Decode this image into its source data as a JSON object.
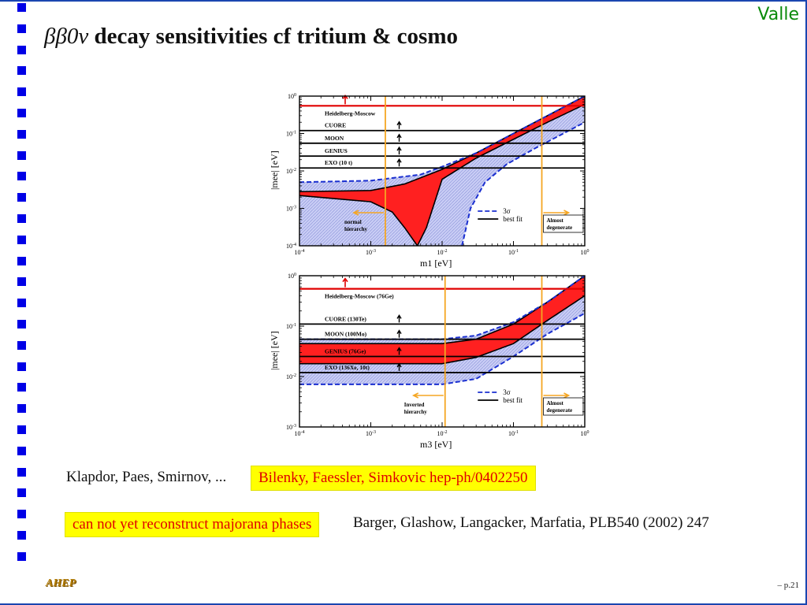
{
  "header": {
    "author": "Valle"
  },
  "title": {
    "symbol": "ββ0ν",
    "text": "decay sensitivities cf tritium & cosmo"
  },
  "chart_data": [
    {
      "type": "line",
      "xlabel": "m1 [eV]",
      "ylabel": "|mee| [eV]",
      "xscale": "log",
      "yscale": "log",
      "xlim": [
        0.0001,
        1
      ],
      "ylim": [
        0.0001,
        1
      ],
      "x_ticks": [
        "10-4",
        "10-3",
        "10-2",
        "10-1",
        "100"
      ],
      "y_ticks": [
        "10-4",
        "10-3",
        "10-2",
        "10-1",
        "100"
      ],
      "experiments": [
        {
          "name": "Heidelberg-Moscow",
          "value": 0.55,
          "color": "#e00000"
        },
        {
          "name": "CUORE",
          "value": 0.12,
          "color": "#000000"
        },
        {
          "name": "MOON",
          "value": 0.055,
          "color": "#000000"
        },
        {
          "name": "GENIUS",
          "value": 0.025,
          "color": "#000000"
        },
        {
          "name": "EXO (10 t)",
          "value": 0.012,
          "color": "#000000"
        }
      ],
      "vertical_lines": [
        0.0016,
        0.25
      ],
      "annotations": [
        "normal hierarchy",
        "Almost degenerate"
      ],
      "legend": [
        {
          "label": "3σ",
          "style": "dashed",
          "color": "#1a2fd0"
        },
        {
          "label": "best fit",
          "style": "solid",
          "color": "#000000"
        }
      ],
      "series": [
        {
          "name": "best fit upper",
          "x": [
            0.0001,
            0.001,
            0.003,
            0.01,
            0.03,
            0.1,
            0.3,
            1
          ],
          "y": [
            0.0028,
            0.003,
            0.0045,
            0.011,
            0.03,
            0.1,
            0.3,
            1
          ]
        },
        {
          "name": "best fit lower",
          "x": [
            0.0001,
            0.001,
            0.002,
            0.003,
            0.0045,
            0.006,
            0.01,
            0.03,
            0.1,
            0.3,
            1
          ],
          "y": [
            0.0022,
            0.0015,
            0.0008,
            0.0003,
            0.0001,
            0.0003,
            0.006,
            0.022,
            0.07,
            0.2,
            0.6
          ]
        },
        {
          "name": "3σ upper",
          "x": [
            0.0001,
            0.001,
            0.005,
            0.01,
            0.03,
            0.1,
            0.3,
            1
          ],
          "y": [
            0.005,
            0.0055,
            0.008,
            0.013,
            0.03,
            0.1,
            0.3,
            1
          ]
        },
        {
          "name": "3σ lower",
          "x": [
            0.019,
            0.025,
            0.04,
            0.08,
            0.2,
            0.5,
            1
          ],
          "y": [
            0.0001,
            0.001,
            0.005,
            0.015,
            0.04,
            0.1,
            0.2
          ]
        }
      ]
    },
    {
      "type": "line",
      "xlabel": "m3 [eV]",
      "ylabel": "|mee| [eV]",
      "xscale": "log",
      "yscale": "log",
      "xlim": [
        0.0001,
        1
      ],
      "ylim": [
        0.001,
        1
      ],
      "x_ticks": [
        "10-4",
        "10-3",
        "10-2",
        "10-1",
        "100"
      ],
      "y_ticks": [
        "10-3",
        "10-2",
        "10-1",
        "100"
      ],
      "experiments": [
        {
          "name": "Heidelberg-Moscow (76Ge)",
          "value": 0.55,
          "color": "#e00000"
        },
        {
          "name": "CUORE (130Te)",
          "value": 0.11,
          "color": "#000000"
        },
        {
          "name": "MOON (100Mo)",
          "value": 0.055,
          "color": "#000000"
        },
        {
          "name": "GENIUS (76Ge)",
          "value": 0.025,
          "color": "#000000"
        },
        {
          "name": "EXO (136Xe, 10t)",
          "value": 0.012,
          "color": "#000000"
        }
      ],
      "vertical_lines": [
        0.011,
        0.25
      ],
      "annotations": [
        "Inverted hierarchy",
        "Almost degenerate"
      ],
      "legend": [
        {
          "label": "3σ",
          "style": "dashed",
          "color": "#1a2fd0"
        },
        {
          "label": "best fit",
          "style": "solid",
          "color": "#000000"
        }
      ],
      "series": [
        {
          "name": "best fit upper",
          "x": [
            0.0001,
            0.01,
            0.03,
            0.1,
            0.3,
            1
          ],
          "y": [
            0.045,
            0.045,
            0.055,
            0.11,
            0.3,
            1
          ]
        },
        {
          "name": "best fit lower",
          "x": [
            0.0001,
            0.01,
            0.03,
            0.1,
            0.3,
            1
          ],
          "y": [
            0.018,
            0.018,
            0.024,
            0.045,
            0.13,
            0.4
          ]
        },
        {
          "name": "3σ upper",
          "x": [
            0.0001,
            0.01,
            0.03,
            0.1,
            0.3,
            1
          ],
          "y": [
            0.055,
            0.055,
            0.065,
            0.12,
            0.3,
            1
          ]
        },
        {
          "name": "3σ lower",
          "x": [
            0.0001,
            0.01,
            0.03,
            0.1,
            0.3,
            1
          ],
          "y": [
            0.007,
            0.007,
            0.009,
            0.025,
            0.07,
            0.18
          ]
        }
      ]
    }
  ],
  "references": {
    "line1": "Klapdor, Paes, Smirnov, ...",
    "highlight1": "Bilenky, Faessler, Simkovic hep-ph/0402250",
    "highlight2": "can not yet reconstruct majorana phases",
    "line2": "Barger, Glashow, Langacker, Marfatia, PLB540 (2002) 247"
  },
  "footer": {
    "logo": "AHEP",
    "page": "– p.21"
  },
  "colors": {
    "frame": "#1a46b0",
    "bullets": "#0000e6",
    "author": "#0a8a0a",
    "highlight_bg": "#ffff00",
    "highlight_text": "#e00000",
    "band_red": "#ff2020",
    "band_blue": "#c9cdf5",
    "vline": "#f5a623"
  }
}
